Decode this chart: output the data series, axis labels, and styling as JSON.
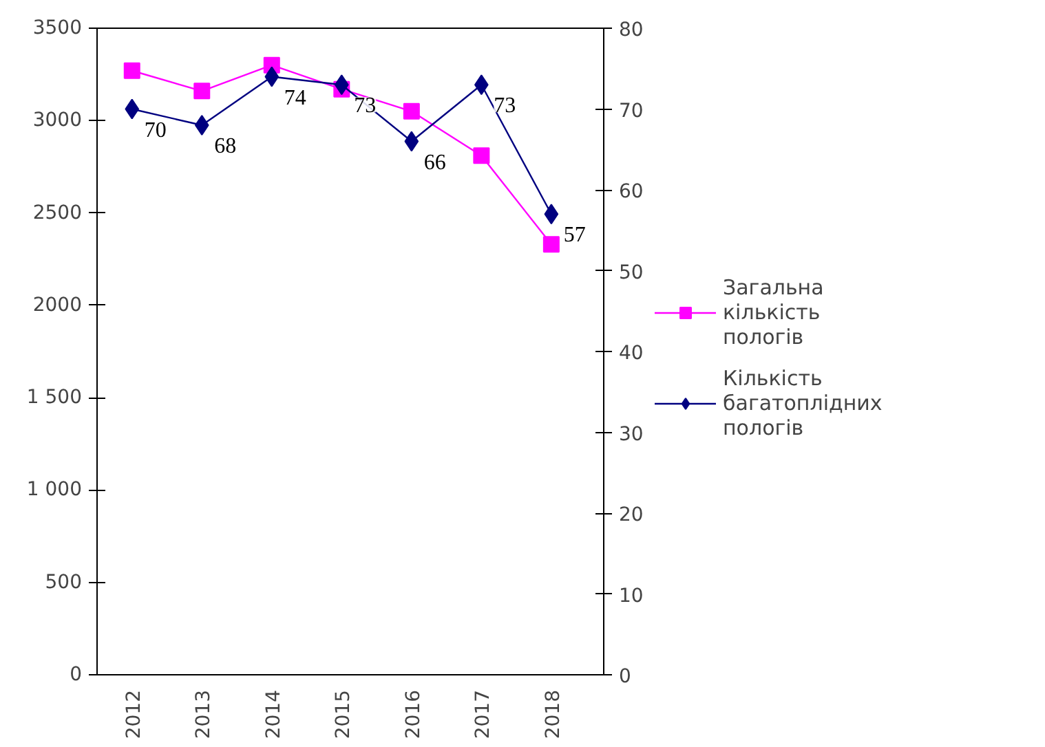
{
  "chart_data": {
    "type": "line",
    "categories": [
      "2012",
      "2013",
      "2014",
      "2015",
      "2016",
      "2017",
      "2018"
    ],
    "series": [
      {
        "name": "Загальна кількість пологів",
        "color": "#ff00ff",
        "marker": "square",
        "values": [
          3270,
          3160,
          3300,
          3170,
          3050,
          2810,
          2330
        ]
      },
      {
        "name": "Кількість багатоплідних пологів",
        "color": "#000080",
        "marker": "diamond",
        "axis": "y2",
        "values": [
          70,
          68,
          74,
          73,
          66,
          73,
          57
        ],
        "value_labels": [
          "70",
          "68",
          "74",
          "73",
          "66",
          "73",
          "57"
        ]
      }
    ],
    "ylim": [
      0,
      3500
    ],
    "yticks": [
      0,
      500,
      {
        "value": 1000,
        "label": "1 000"
      },
      {
        "value": 1500,
        "label": "1 500"
      },
      2000,
      2500,
      3000,
      3500
    ],
    "y2lim": [
      0,
      80
    ],
    "y2ticks": [
      0,
      10,
      20,
      30,
      40,
      50,
      60,
      70,
      80
    ],
    "grid": false,
    "legend": "right",
    "line_style": "solid"
  }
}
